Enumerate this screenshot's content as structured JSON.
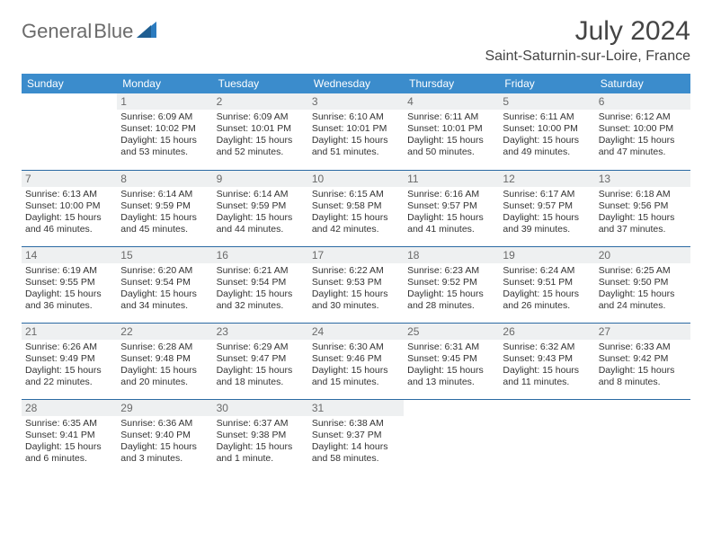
{
  "brand": {
    "part1": "General",
    "part2": "Blue",
    "text_color": "#6b6b6b",
    "accent_color": "#2b7bbf"
  },
  "title": "July 2024",
  "location": "Saint-Saturnin-sur-Loire, France",
  "colors": {
    "header_bg": "#3b8ccc",
    "header_fg": "#ffffff",
    "daynum_bg": "#eef0f1",
    "daynum_fg": "#6a6a6a",
    "row_border": "#2b6aa3",
    "body_text": "#333333"
  },
  "day_headers": [
    "Sunday",
    "Monday",
    "Tuesday",
    "Wednesday",
    "Thursday",
    "Friday",
    "Saturday"
  ],
  "weeks": [
    [
      null,
      {
        "n": "1",
        "sr": "6:09 AM",
        "ss": "10:02 PM",
        "dl": "15 hours and 53 minutes."
      },
      {
        "n": "2",
        "sr": "6:09 AM",
        "ss": "10:01 PM",
        "dl": "15 hours and 52 minutes."
      },
      {
        "n": "3",
        "sr": "6:10 AM",
        "ss": "10:01 PM",
        "dl": "15 hours and 51 minutes."
      },
      {
        "n": "4",
        "sr": "6:11 AM",
        "ss": "10:01 PM",
        "dl": "15 hours and 50 minutes."
      },
      {
        "n": "5",
        "sr": "6:11 AM",
        "ss": "10:00 PM",
        "dl": "15 hours and 49 minutes."
      },
      {
        "n": "6",
        "sr": "6:12 AM",
        "ss": "10:00 PM",
        "dl": "15 hours and 47 minutes."
      }
    ],
    [
      {
        "n": "7",
        "sr": "6:13 AM",
        "ss": "10:00 PM",
        "dl": "15 hours and 46 minutes."
      },
      {
        "n": "8",
        "sr": "6:14 AM",
        "ss": "9:59 PM",
        "dl": "15 hours and 45 minutes."
      },
      {
        "n": "9",
        "sr": "6:14 AM",
        "ss": "9:59 PM",
        "dl": "15 hours and 44 minutes."
      },
      {
        "n": "10",
        "sr": "6:15 AM",
        "ss": "9:58 PM",
        "dl": "15 hours and 42 minutes."
      },
      {
        "n": "11",
        "sr": "6:16 AM",
        "ss": "9:57 PM",
        "dl": "15 hours and 41 minutes."
      },
      {
        "n": "12",
        "sr": "6:17 AM",
        "ss": "9:57 PM",
        "dl": "15 hours and 39 minutes."
      },
      {
        "n": "13",
        "sr": "6:18 AM",
        "ss": "9:56 PM",
        "dl": "15 hours and 37 minutes."
      }
    ],
    [
      {
        "n": "14",
        "sr": "6:19 AM",
        "ss": "9:55 PM",
        "dl": "15 hours and 36 minutes."
      },
      {
        "n": "15",
        "sr": "6:20 AM",
        "ss": "9:54 PM",
        "dl": "15 hours and 34 minutes."
      },
      {
        "n": "16",
        "sr": "6:21 AM",
        "ss": "9:54 PM",
        "dl": "15 hours and 32 minutes."
      },
      {
        "n": "17",
        "sr": "6:22 AM",
        "ss": "9:53 PM",
        "dl": "15 hours and 30 minutes."
      },
      {
        "n": "18",
        "sr": "6:23 AM",
        "ss": "9:52 PM",
        "dl": "15 hours and 28 minutes."
      },
      {
        "n": "19",
        "sr": "6:24 AM",
        "ss": "9:51 PM",
        "dl": "15 hours and 26 minutes."
      },
      {
        "n": "20",
        "sr": "6:25 AM",
        "ss": "9:50 PM",
        "dl": "15 hours and 24 minutes."
      }
    ],
    [
      {
        "n": "21",
        "sr": "6:26 AM",
        "ss": "9:49 PM",
        "dl": "15 hours and 22 minutes."
      },
      {
        "n": "22",
        "sr": "6:28 AM",
        "ss": "9:48 PM",
        "dl": "15 hours and 20 minutes."
      },
      {
        "n": "23",
        "sr": "6:29 AM",
        "ss": "9:47 PM",
        "dl": "15 hours and 18 minutes."
      },
      {
        "n": "24",
        "sr": "6:30 AM",
        "ss": "9:46 PM",
        "dl": "15 hours and 15 minutes."
      },
      {
        "n": "25",
        "sr": "6:31 AM",
        "ss": "9:45 PM",
        "dl": "15 hours and 13 minutes."
      },
      {
        "n": "26",
        "sr": "6:32 AM",
        "ss": "9:43 PM",
        "dl": "15 hours and 11 minutes."
      },
      {
        "n": "27",
        "sr": "6:33 AM",
        "ss": "9:42 PM",
        "dl": "15 hours and 8 minutes."
      }
    ],
    [
      {
        "n": "28",
        "sr": "6:35 AM",
        "ss": "9:41 PM",
        "dl": "15 hours and 6 minutes."
      },
      {
        "n": "29",
        "sr": "6:36 AM",
        "ss": "9:40 PM",
        "dl": "15 hours and 3 minutes."
      },
      {
        "n": "30",
        "sr": "6:37 AM",
        "ss": "9:38 PM",
        "dl": "15 hours and 1 minute."
      },
      {
        "n": "31",
        "sr": "6:38 AM",
        "ss": "9:37 PM",
        "dl": "14 hours and 58 minutes."
      },
      null,
      null,
      null
    ]
  ],
  "labels": {
    "sunrise_prefix": "Sunrise: ",
    "sunset_prefix": "Sunset: ",
    "daylight_prefix": "Daylight: "
  }
}
